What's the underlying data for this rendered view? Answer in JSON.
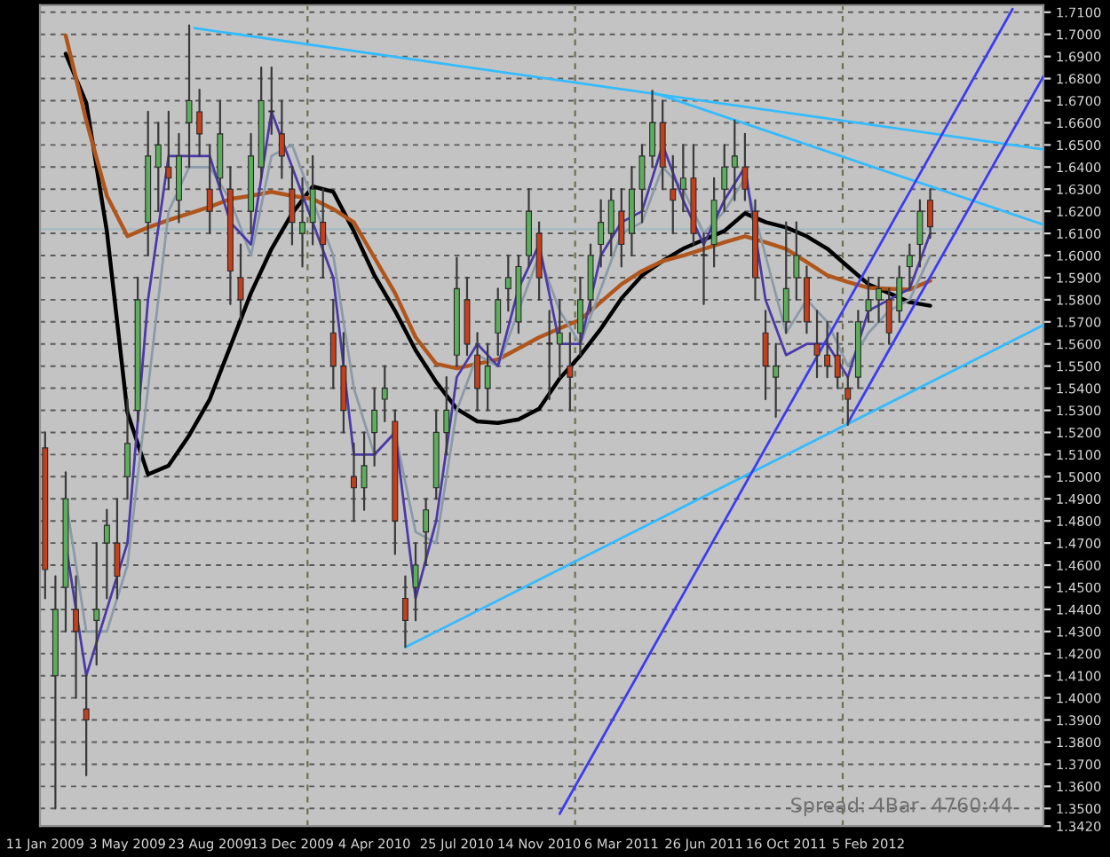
{
  "chart_data": {
    "type": "candlestick",
    "x": [
      "2009-01-11",
      "2009-01-25",
      "2009-02-08",
      "2009-02-22",
      "2009-03-08",
      "2009-03-22",
      "2009-04-05",
      "2009-04-19",
      "2009-05-03",
      "2009-05-17",
      "2009-05-31",
      "2009-06-14",
      "2009-06-28",
      "2009-07-12",
      "2009-07-26",
      "2009-08-09",
      "2009-08-23",
      "2009-09-06",
      "2009-09-20",
      "2009-10-04",
      "2009-10-18",
      "2009-11-01",
      "2009-11-15",
      "2009-11-29",
      "2009-12-13",
      "2009-12-27",
      "2010-01-10",
      "2010-01-24",
      "2010-02-07",
      "2010-02-21",
      "2010-03-07",
      "2010-03-21",
      "2010-04-04",
      "2010-04-18",
      "2010-05-02",
      "2010-05-16",
      "2010-05-30",
      "2010-06-13",
      "2010-06-27",
      "2010-07-11",
      "2010-07-25",
      "2010-08-08",
      "2010-08-22",
      "2010-09-05",
      "2010-09-19",
      "2010-10-03",
      "2010-10-17",
      "2010-10-31",
      "2010-11-14",
      "2010-11-28",
      "2010-12-12",
      "2010-12-26",
      "2011-01-09",
      "2011-01-23",
      "2011-02-06",
      "2011-02-20",
      "2011-03-06",
      "2011-03-20",
      "2011-04-03",
      "2011-04-17",
      "2011-05-01",
      "2011-05-15",
      "2011-05-29",
      "2011-06-12",
      "2011-06-26",
      "2011-07-10",
      "2011-07-24",
      "2011-08-07",
      "2011-08-21",
      "2011-09-04",
      "2011-09-18",
      "2011-10-02",
      "2011-10-16",
      "2011-10-30",
      "2011-11-13",
      "2011-11-27",
      "2011-12-11",
      "2011-12-25",
      "2012-01-08",
      "2012-01-22",
      "2012-02-05",
      "2012-02-19",
      "2012-03-04",
      "2012-03-18",
      "2012-04-01",
      "2012-04-15",
      "2012-04-29"
    ],
    "ohlc": [
      [
        1.513,
        1.52,
        1.445,
        1.458
      ],
      [
        1.41,
        1.455,
        1.35,
        1.44
      ],
      [
        1.45,
        1.502,
        1.43,
        1.49
      ],
      [
        1.44,
        1.455,
        1.4,
        1.43
      ],
      [
        1.395,
        1.41,
        1.365,
        1.39
      ],
      [
        1.435,
        1.47,
        1.415,
        1.44
      ],
      [
        1.47,
        1.485,
        1.445,
        1.478
      ],
      [
        1.47,
        1.49,
        1.445,
        1.455
      ],
      [
        1.5,
        1.535,
        1.49,
        1.515
      ],
      [
        1.53,
        1.59,
        1.525,
        1.58
      ],
      [
        1.615,
        1.665,
        1.6,
        1.645
      ],
      [
        1.64,
        1.66,
        1.62,
        1.65
      ],
      [
        1.64,
        1.665,
        1.63,
        1.635
      ],
      [
        1.625,
        1.655,
        1.615,
        1.645
      ],
      [
        1.66,
        1.704,
        1.64,
        1.67
      ],
      [
        1.665,
        1.675,
        1.645,
        1.655
      ],
      [
        1.63,
        1.65,
        1.61,
        1.62
      ],
      [
        1.635,
        1.67,
        1.63,
        1.655
      ],
      [
        1.63,
        1.64,
        1.578,
        1.593
      ],
      [
        1.59,
        1.605,
        1.571,
        1.58
      ],
      [
        1.62,
        1.655,
        1.61,
        1.645
      ],
      [
        1.64,
        1.685,
        1.635,
        1.67
      ],
      [
        1.665,
        1.685,
        1.655,
        1.665
      ],
      [
        1.655,
        1.67,
        1.635,
        1.645
      ],
      [
        1.63,
        1.64,
        1.605,
        1.615
      ],
      [
        1.61,
        1.635,
        1.595,
        1.615
      ],
      [
        1.615,
        1.645,
        1.605,
        1.63
      ],
      [
        1.615,
        1.63,
        1.59,
        1.605
      ],
      [
        1.565,
        1.58,
        1.54,
        1.55
      ],
      [
        1.55,
        1.565,
        1.52,
        1.53
      ],
      [
        1.5,
        1.515,
        1.48,
        1.495
      ],
      [
        1.495,
        1.52,
        1.485,
        1.505
      ],
      [
        1.52,
        1.54,
        1.505,
        1.53
      ],
      [
        1.535,
        1.55,
        1.525,
        1.54
      ],
      [
        1.525,
        1.53,
        1.465,
        1.48
      ],
      [
        1.445,
        1.455,
        1.423,
        1.435
      ],
      [
        1.45,
        1.47,
        1.435,
        1.46
      ],
      [
        1.475,
        1.49,
        1.46,
        1.485
      ],
      [
        1.495,
        1.53,
        1.49,
        1.52
      ],
      [
        1.52,
        1.545,
        1.51,
        1.53
      ],
      [
        1.555,
        1.599,
        1.55,
        1.585
      ],
      [
        1.58,
        1.59,
        1.555,
        1.56
      ],
      [
        1.555,
        1.565,
        1.53,
        1.54
      ],
      [
        1.54,
        1.56,
        1.53,
        1.55
      ],
      [
        1.565,
        1.585,
        1.555,
        1.58
      ],
      [
        1.585,
        1.6,
        1.575,
        1.59
      ],
      [
        1.57,
        1.6,
        1.565,
        1.595
      ],
      [
        1.6,
        1.63,
        1.595,
        1.62
      ],
      [
        1.61,
        1.615,
        1.58,
        1.59
      ],
      [
        1.56,
        1.575,
        1.535,
        1.56
      ],
      [
        1.56,
        1.58,
        1.545,
        1.565
      ],
      [
        1.55,
        1.565,
        1.53,
        1.545
      ],
      [
        1.565,
        1.59,
        1.555,
        1.58
      ],
      [
        1.58,
        1.605,
        1.575,
        1.6
      ],
      [
        1.605,
        1.625,
        1.595,
        1.615
      ],
      [
        1.61,
        1.63,
        1.6,
        1.625
      ],
      [
        1.62,
        1.63,
        1.595,
        1.605
      ],
      [
        1.61,
        1.64,
        1.6,
        1.63
      ],
      [
        1.63,
        1.65,
        1.615,
        1.645
      ],
      [
        1.645,
        1.6745,
        1.64,
        1.66
      ],
      [
        1.66,
        1.67,
        1.63,
        1.64
      ],
      [
        1.63,
        1.645,
        1.61,
        1.625
      ],
      [
        1.63,
        1.65,
        1.62,
        1.635
      ],
      [
        1.635,
        1.65,
        1.605,
        1.61
      ],
      [
        1.6,
        1.61,
        1.578,
        1.6
      ],
      [
        1.605,
        1.635,
        1.595,
        1.625
      ],
      [
        1.63,
        1.65,
        1.62,
        1.64
      ],
      [
        1.64,
        1.661,
        1.625,
        1.645
      ],
      [
        1.64,
        1.655,
        1.625,
        1.63
      ],
      [
        1.62,
        1.625,
        1.58,
        1.59
      ],
      [
        1.565,
        1.575,
        1.535,
        1.55
      ],
      [
        1.545,
        1.56,
        1.527,
        1.55
      ],
      [
        1.57,
        1.615,
        1.565,
        1.585
      ],
      [
        1.59,
        1.615,
        1.58,
        1.6
      ],
      [
        1.59,
        1.595,
        1.565,
        1.57
      ],
      [
        1.56,
        1.575,
        1.545,
        1.555
      ],
      [
        1.555,
        1.57,
        1.545,
        1.55
      ],
      [
        1.555,
        1.565,
        1.54,
        1.545
      ],
      [
        1.54,
        1.545,
        1.5234,
        1.535
      ],
      [
        1.545,
        1.575,
        1.54,
        1.57
      ],
      [
        1.575,
        1.59,
        1.57,
        1.58
      ],
      [
        1.58,
        1.59,
        1.57,
        1.585
      ],
      [
        1.58,
        1.585,
        1.56,
        1.565
      ],
      [
        1.575,
        1.595,
        1.57,
        1.59
      ],
      [
        1.595,
        1.605,
        1.585,
        1.6
      ],
      [
        1.605,
        1.625,
        1.595,
        1.62
      ],
      [
        1.625,
        1.63,
        1.608,
        1.613
      ]
    ],
    "series": [
      {
        "type": "line",
        "color": "#000000",
        "x": [
          "2009-02-08",
          "2009-03-08",
          "2009-04-05",
          "2009-05-03",
          "2009-05-31",
          "2009-06-28",
          "2009-07-26",
          "2009-08-23",
          "2009-09-20",
          "2009-10-18",
          "2009-11-15",
          "2009-12-13",
          "2010-01-10",
          "2010-02-07",
          "2010-03-07",
          "2010-04-04",
          "2010-05-02",
          "2010-05-30",
          "2010-06-27",
          "2010-07-25",
          "2010-08-22",
          "2010-09-19",
          "2010-10-17",
          "2010-11-14",
          "2010-12-12",
          "2011-01-09",
          "2011-02-06",
          "2011-03-06",
          "2011-04-03",
          "2011-05-01",
          "2011-05-29",
          "2011-06-26",
          "2011-07-24",
          "2011-08-21",
          "2011-09-18",
          "2011-10-16",
          "2011-11-13",
          "2011-12-11",
          "2012-01-08",
          "2012-02-05",
          "2012-03-04",
          "2012-04-01",
          "2012-04-29"
        ],
        "values": [
          1.6912,
          1.669,
          1.611,
          1.529,
          1.501,
          1.505,
          1.5187,
          1.535,
          1.5589,
          1.583,
          1.603,
          1.619,
          1.6312,
          1.6288,
          1.611,
          1.591,
          1.575,
          1.5572,
          1.5428,
          1.5307,
          1.525,
          1.5243,
          1.5259,
          1.5307,
          1.5444,
          1.5548,
          1.5669,
          1.5806,
          1.591,
          1.5975,
          1.6031,
          1.6071,
          1.6111,
          1.6191,
          1.6151,
          1.6127,
          1.6087,
          1.6031,
          1.595,
          1.587,
          1.583,
          1.5789,
          1.5773
        ]
      },
      {
        "type": "line",
        "color": "#b0561c",
        "x": [
          "2009-02-08",
          "2009-03-08",
          "2009-04-05",
          "2009-05-03",
          "2009-05-31",
          "2009-06-28",
          "2009-07-26",
          "2009-08-23",
          "2009-09-20",
          "2009-10-18",
          "2009-11-15",
          "2009-12-13",
          "2010-01-10",
          "2010-02-07",
          "2010-03-07",
          "2010-04-04",
          "2010-05-02",
          "2010-05-30",
          "2010-06-27",
          "2010-07-25",
          "2010-08-22",
          "2010-09-19",
          "2010-10-17",
          "2010-11-14",
          "2010-12-12",
          "2011-01-09",
          "2011-02-06",
          "2011-03-06",
          "2011-04-03",
          "2011-05-01",
          "2011-05-29",
          "2011-06-26",
          "2011-07-24",
          "2011-08-21",
          "2011-09-18",
          "2011-10-16",
          "2011-11-13",
          "2011-12-11",
          "2012-01-08",
          "2012-02-05",
          "2012-03-04",
          "2012-04-01",
          "2012-04-29"
        ],
        "values": [
          1.6995,
          1.661,
          1.627,
          1.6087,
          1.6127,
          1.616,
          1.619,
          1.622,
          1.6256,
          1.627,
          1.6288,
          1.627,
          1.6256,
          1.621,
          1.615,
          1.599,
          1.583,
          1.563,
          1.551,
          1.549,
          1.551,
          1.553,
          1.558,
          1.563,
          1.567,
          1.571,
          1.579,
          1.587,
          1.593,
          1.5975,
          1.6,
          1.603,
          1.606,
          1.6087,
          1.606,
          1.603,
          1.597,
          1.591,
          1.588,
          1.5854,
          1.585,
          1.5846,
          1.5886
        ]
      },
      {
        "type": "line",
        "color": "#8a9aa8",
        "x": [
          "2009-02-08",
          "2009-03-08",
          "2009-04-05",
          "2009-05-03",
          "2009-05-31",
          "2009-06-28",
          "2009-07-26",
          "2009-08-23",
          "2009-09-20",
          "2009-10-18",
          "2009-11-15",
          "2009-12-13",
          "2010-01-10",
          "2010-02-07",
          "2010-03-07",
          "2010-04-04",
          "2010-05-02",
          "2010-05-30",
          "2010-06-27",
          "2010-07-25",
          "2010-08-22",
          "2010-09-19",
          "2010-10-17",
          "2010-11-14",
          "2010-12-12",
          "2011-01-09",
          "2011-02-06",
          "2011-03-06",
          "2011-04-03",
          "2011-05-01",
          "2011-05-29",
          "2011-06-26",
          "2011-07-24",
          "2011-08-21",
          "2011-09-18",
          "2011-10-16",
          "2011-11-13",
          "2011-12-11",
          "2012-01-08",
          "2012-02-05",
          "2012-03-04",
          "2012-04-01",
          "2012-04-29"
        ],
        "values": [
          1.49,
          1.43,
          1.43,
          1.46,
          1.54,
          1.62,
          1.64,
          1.64,
          1.625,
          1.6,
          1.645,
          1.65,
          1.625,
          1.6,
          1.54,
          1.51,
          1.52,
          1.475,
          1.47,
          1.53,
          1.555,
          1.55,
          1.575,
          1.6,
          1.575,
          1.56,
          1.585,
          1.61,
          1.615,
          1.64,
          1.63,
          1.61,
          1.62,
          1.635,
          1.6,
          1.565,
          1.58,
          1.57,
          1.55,
          1.565,
          1.575,
          1.58,
          1.6
        ]
      },
      {
        "type": "line",
        "color": "#4a3aa8",
        "x": [
          "2009-02-08",
          "2009-03-08",
          "2009-04-05",
          "2009-05-03",
          "2009-05-31",
          "2009-06-28",
          "2009-07-26",
          "2009-08-23",
          "2009-09-20",
          "2009-10-18",
          "2009-11-15",
          "2009-12-13",
          "2010-01-10",
          "2010-02-07",
          "2010-03-07",
          "2010-04-04",
          "2010-05-02",
          "2010-05-30",
          "2010-06-27",
          "2010-07-25",
          "2010-08-22",
          "2010-09-19",
          "2010-10-17",
          "2010-11-14",
          "2010-12-12",
          "2011-01-09",
          "2011-02-06",
          "2011-03-06",
          "2011-04-03",
          "2011-05-01",
          "2011-05-29",
          "2011-06-26",
          "2011-07-24",
          "2011-08-21",
          "2011-09-18",
          "2011-10-16",
          "2011-11-13",
          "2011-12-11",
          "2012-01-08",
          "2012-02-05",
          "2012-03-04",
          "2012-04-01",
          "2012-04-29"
        ],
        "values": [
          1.47,
          1.41,
          1.44,
          1.47,
          1.58,
          1.645,
          1.645,
          1.645,
          1.615,
          1.605,
          1.665,
          1.64,
          1.615,
          1.59,
          1.51,
          1.51,
          1.52,
          1.445,
          1.48,
          1.545,
          1.56,
          1.55,
          1.585,
          1.605,
          1.56,
          1.56,
          1.6,
          1.615,
          1.62,
          1.65,
          1.625,
          1.605,
          1.625,
          1.64,
          1.58,
          1.555,
          1.56,
          1.56,
          1.545,
          1.575,
          1.58,
          1.585,
          1.61
        ]
      },
      {
        "type": "line",
        "color": "#33bbff",
        "x": [
          "2009-08-02",
          "2012-09-30"
        ],
        "values": [
          1.7028,
          1.648
        ]
      },
      {
        "type": "line",
        "color": "#33bbff",
        "x": [
          "2011-04-17",
          "2012-09-30"
        ],
        "values": [
          1.6738,
          1.614
        ]
      },
      {
        "type": "line",
        "color": "#33bbff",
        "x": [
          "2010-05-16",
          "2012-09-30"
        ],
        "values": [
          1.4229,
          1.5685
        ]
      },
      {
        "type": "line",
        "color": "#3c3cf0",
        "x": [
          "2010-12-12",
          "2012-08-19"
        ],
        "values": [
          1.3476,
          1.7114
        ]
      },
      {
        "type": "line",
        "color": "#3c3cf0",
        "x": [
          "2012-01-08",
          "2012-09-30"
        ],
        "values": [
          1.5243,
          1.681
        ]
      }
    ],
    "xlim": [
      "2009-01-04",
      "2012-09-30"
    ],
    "xticks": [
      {
        "value": "2009-01-11",
        "label": "11 Jan 2009"
      },
      {
        "value": "2009-05-03",
        "label": "3 May 2009"
      },
      {
        "value": "2009-08-23",
        "label": "23 Aug 2009"
      },
      {
        "value": "2009-12-13",
        "label": "13 Dec 2009"
      },
      {
        "value": "2010-04-04",
        "label": "4 Apr 2010"
      },
      {
        "value": "2010-07-25",
        "label": "25 Jul 2010"
      },
      {
        "value": "2010-11-14",
        "label": "14 Nov 2010"
      },
      {
        "value": "2011-03-06",
        "label": "6 Mar 2011"
      },
      {
        "value": "2011-06-26",
        "label": "26 Jun 2011"
      },
      {
        "value": "2011-10-16",
        "label": "16 Oct 2011"
      },
      {
        "value": "2012-02-05",
        "label": "5 Feb 2012"
      }
    ],
    "ylim": [
      1.342,
      1.7132
    ],
    "yticks": [
      {
        "value": 1.342,
        "label": "1.3420"
      },
      {
        "value": 1.35,
        "label": "1.3500"
      },
      {
        "value": 1.36,
        "label": "1.3600"
      },
      {
        "value": 1.37,
        "label": "1.3700"
      },
      {
        "value": 1.38,
        "label": "1.3800"
      },
      {
        "value": 1.39,
        "label": "1.3900"
      },
      {
        "value": 1.4,
        "label": "1.4000"
      },
      {
        "value": 1.41,
        "label": "1.4100"
      },
      {
        "value": 1.42,
        "label": "1.4200"
      },
      {
        "value": 1.43,
        "label": "1.4300"
      },
      {
        "value": 1.44,
        "label": "1.4400"
      },
      {
        "value": 1.45,
        "label": "1.4500"
      },
      {
        "value": 1.46,
        "label": "1.4600"
      },
      {
        "value": 1.47,
        "label": "1.4700"
      },
      {
        "value": 1.48,
        "label": "1.4800"
      },
      {
        "value": 1.49,
        "label": "1.4900"
      },
      {
        "value": 1.5,
        "label": "1.5000"
      },
      {
        "value": 1.51,
        "label": "1.5100"
      },
      {
        "value": 1.52,
        "label": "1.5200"
      },
      {
        "value": 1.53,
        "label": "1.5300"
      },
      {
        "value": 1.54,
        "label": "1.5400"
      },
      {
        "value": 1.55,
        "label": "1.5500"
      },
      {
        "value": 1.56,
        "label": "1.5600"
      },
      {
        "value": 1.57,
        "label": "1.5700"
      },
      {
        "value": 1.58,
        "label": "1.5800"
      },
      {
        "value": 1.59,
        "label": "1.5900"
      },
      {
        "value": 1.6,
        "label": "1.6000"
      },
      {
        "value": 1.61,
        "label": "1.6100"
      },
      {
        "value": 1.62,
        "label": "1.6200"
      },
      {
        "value": 1.63,
        "label": "1.6300"
      },
      {
        "value": 1.64,
        "label": "1.6400"
      },
      {
        "value": 1.65,
        "label": "1.6500"
      },
      {
        "value": 1.66,
        "label": "1.6600"
      },
      {
        "value": 1.67,
        "label": "1.6700"
      },
      {
        "value": 1.68,
        "label": "1.6800"
      },
      {
        "value": 1.69,
        "label": "1.6900"
      },
      {
        "value": 1.7,
        "label": "1.7000"
      },
      {
        "value": 1.71,
        "label": "1.7100"
      }
    ],
    "grid": "y",
    "ref_lines": [
      {
        "axis": "x",
        "value": "2010-01-03",
        "color": "#707050",
        "line_style": "dashed"
      },
      {
        "axis": "x",
        "value": "2011-01-02",
        "color": "#707050",
        "line_style": "dashed"
      },
      {
        "axis": "x",
        "value": "2012-01-01",
        "color": "#707050",
        "line_style": "dashed"
      },
      {
        "axis": "y",
        "value": 1.6119,
        "color": "#a8bcc4",
        "line_style": "solid"
      }
    ],
    "annotations": [
      "Spread: 4Bar  4760:44"
    ]
  }
}
